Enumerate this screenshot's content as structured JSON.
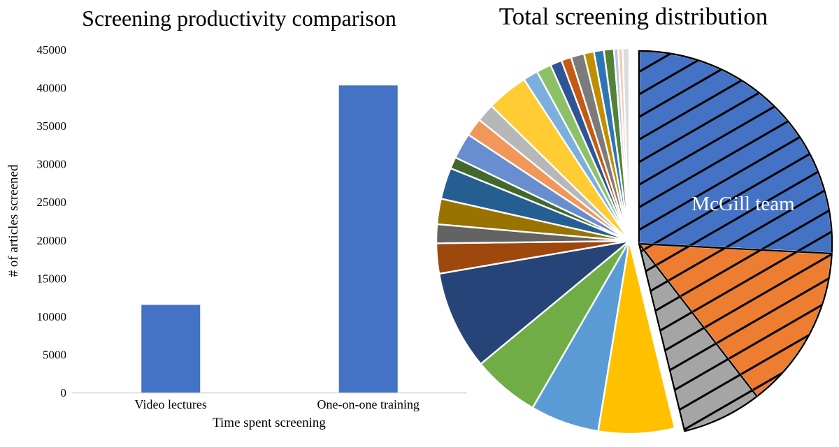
{
  "page": {
    "background": "#ffffff"
  },
  "chart_data": [
    {
      "type": "bar",
      "title": "Screening productivity comparison",
      "categories": [
        "Video lectures",
        "One-on-one training"
      ],
      "values": [
        11500,
        40300
      ],
      "xlabel": "Time spent screening",
      "ylabel": "# of articles screened",
      "ylim": [
        0,
        45000
      ],
      "ytick_step": 5000,
      "yticks": [
        0,
        5000,
        10000,
        15000,
        20000,
        25000,
        30000,
        35000,
        40000,
        45000
      ],
      "bar_color": "#4472C4",
      "axis_line_color": "#D6D6D6",
      "grid": false,
      "legend": false
    },
    {
      "type": "pie",
      "title": "Total screening distribution",
      "annotation": {
        "text": "McGill team",
        "color": "#FFFFFF"
      },
      "highlight_style": "first three slices hatched with black diagonal lines and black outline",
      "slices": [
        {
          "label": "McGill team",
          "percent": 25.8,
          "deg": 93.0,
          "color": "#4472C4",
          "hatched": true
        },
        {
          "label": "",
          "percent": 13.8,
          "deg": 49.5,
          "color": "#ED7D31",
          "hatched": true
        },
        {
          "label": "",
          "percent": 6.7,
          "deg": 24.0,
          "color": "#A5A5A5",
          "hatched": true
        },
        {
          "label": "",
          "percent": 6.4,
          "deg": 23.0,
          "color": "#FFC000",
          "hatched": false
        },
        {
          "label": "",
          "percent": 5.8,
          "deg": 20.8,
          "color": "#5B9BD5",
          "hatched": false
        },
        {
          "label": "",
          "percent": 5.6,
          "deg": 20.3,
          "color": "#70AD47",
          "hatched": false
        },
        {
          "label": "",
          "percent": 8.3,
          "deg": 29.9,
          "color": "#264478",
          "hatched": false
        },
        {
          "label": "",
          "percent": 2.5,
          "deg": 9.1,
          "color": "#9E480E",
          "hatched": false
        },
        {
          "label": "",
          "percent": 1.6,
          "deg": 5.7,
          "color": "#636363",
          "hatched": false
        },
        {
          "label": "",
          "percent": 2.1,
          "deg": 7.7,
          "color": "#997300",
          "hatched": false
        },
        {
          "label": "",
          "percent": 2.6,
          "deg": 9.5,
          "color": "#255E91",
          "hatched": false
        },
        {
          "label": "",
          "percent": 1.0,
          "deg": 3.5,
          "color": "#43682B",
          "hatched": false
        },
        {
          "label": "",
          "percent": 2.2,
          "deg": 7.8,
          "color": "#698ED0",
          "hatched": false
        },
        {
          "label": "",
          "percent": 1.5,
          "deg": 5.5,
          "color": "#F1975A",
          "hatched": false
        },
        {
          "label": "",
          "percent": 1.5,
          "deg": 5.5,
          "color": "#B7B7B7",
          "hatched": false
        },
        {
          "label": "",
          "percent": 3.5,
          "deg": 12.5,
          "color": "#FFCD33",
          "hatched": false
        },
        {
          "label": "",
          "percent": 1.2,
          "deg": 4.5,
          "color": "#7CAFDD",
          "hatched": false
        },
        {
          "label": "",
          "percent": 1.2,
          "deg": 4.5,
          "color": "#8CC168",
          "hatched": false
        },
        {
          "label": "",
          "percent": 1.0,
          "deg": 3.5,
          "color": "#2F5597",
          "hatched": false
        },
        {
          "label": "",
          "percent": 0.8,
          "deg": 3.0,
          "color": "#C55A11",
          "hatched": false
        },
        {
          "label": "",
          "percent": 1.1,
          "deg": 4.0,
          "color": "#7B7B7B",
          "hatched": false
        },
        {
          "label": "",
          "percent": 0.8,
          "deg": 3.0,
          "color": "#BF8F00",
          "hatched": false
        },
        {
          "label": "",
          "percent": 0.8,
          "deg": 3.0,
          "color": "#2E75B6",
          "hatched": false
        },
        {
          "label": "",
          "percent": 0.8,
          "deg": 3.0,
          "color": "#548235",
          "hatched": false
        },
        {
          "label": "",
          "percent": 0.4,
          "deg": 1.3,
          "color": "#B4C7E7",
          "hatched": false
        },
        {
          "label": "",
          "percent": 0.4,
          "deg": 1.3,
          "color": "#F8CBAD",
          "hatched": false
        },
        {
          "label": "",
          "percent": 0.6,
          "deg": 2.0,
          "color": "#DBDBDB",
          "hatched": false
        }
      ]
    }
  ]
}
